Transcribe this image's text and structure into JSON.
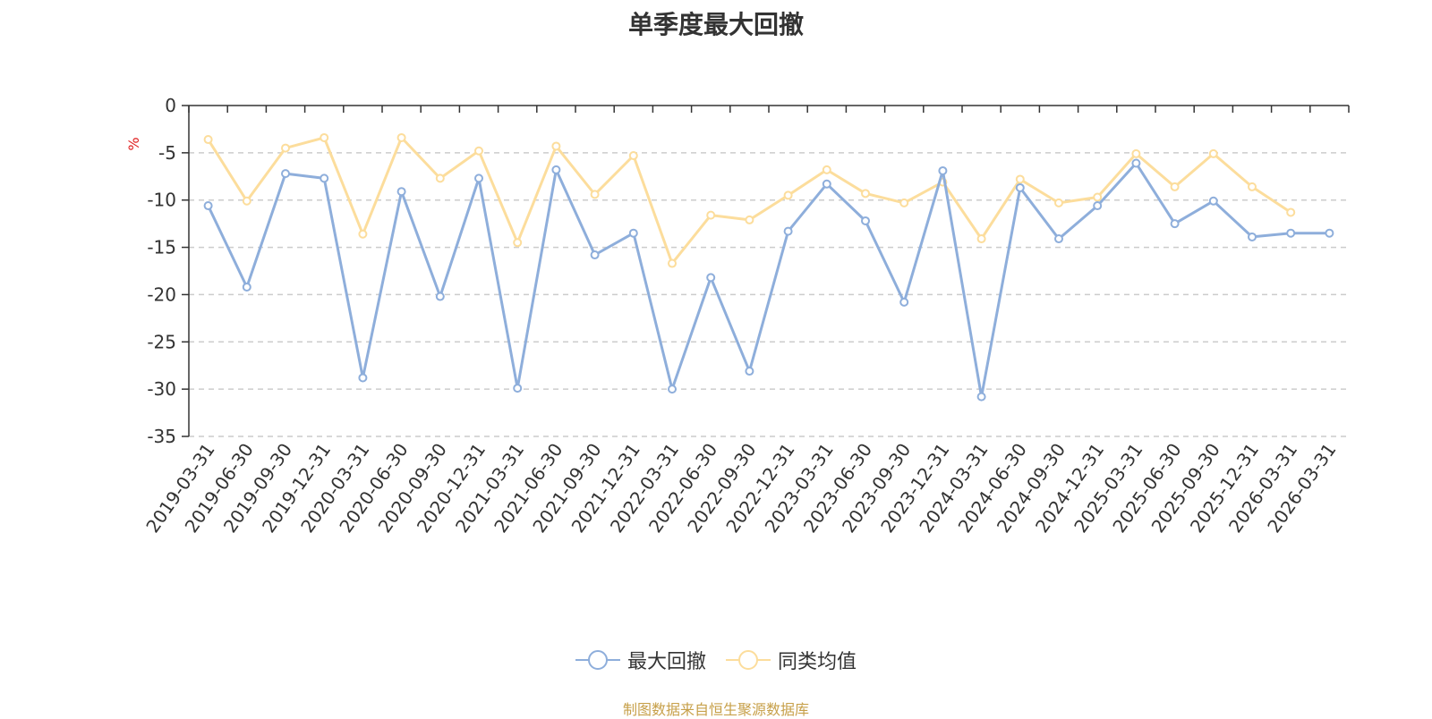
{
  "chart_data": {
    "type": "line",
    "title": "单季度最大回撤",
    "ylabel": "%",
    "xlabel": "",
    "ylim": [
      -35,
      0
    ],
    "yticks": [
      0,
      -5,
      -10,
      -15,
      -20,
      -25,
      -30,
      -35
    ],
    "grid": true,
    "legend_position": "bottom-center",
    "categories": [
      "2019-03-31",
      "2019-06-30",
      "2019-09-30",
      "2019-12-31",
      "2020-03-31",
      "2020-06-30",
      "2020-09-30",
      "2020-12-31",
      "2021-03-31",
      "2021-06-30",
      "2021-09-30",
      "2021-12-31",
      "2022-03-31",
      "2022-06-30",
      "2022-09-30",
      "2022-12-31",
      "2023-03-31",
      "2023-06-30",
      "2023-09-30",
      "2023-12-31",
      "2024-03-31",
      "2024-06-30",
      "2024-09-30",
      "2024-12-31",
      "2025-03-31",
      "2025-06-30",
      "2025-09-30",
      "2025-12-31",
      "2026-03-31",
      "2026-03-31"
    ],
    "series": [
      {
        "name": "最大回撤",
        "color": "#8eaedb",
        "values": [
          -10.6,
          -19.2,
          -7.2,
          -7.7,
          -28.8,
          -9.1,
          -20.2,
          -7.7,
          -29.9,
          -6.8,
          -15.8,
          -13.5,
          -30.0,
          -18.2,
          -28.1,
          -13.3,
          -8.3,
          -12.2,
          -20.8,
          -6.9,
          -30.8,
          -8.7,
          -14.1,
          -10.6,
          -6.1,
          -12.5,
          -10.1,
          -13.9,
          -13.5,
          -13.5
        ]
      },
      {
        "name": "同类均值",
        "color": "#fcdd9c",
        "values": [
          -3.6,
          -10.1,
          -4.5,
          -3.4,
          -13.6,
          -3.4,
          -7.7,
          -4.8,
          -14.5,
          -4.3,
          -9.4,
          -5.3,
          -16.7,
          -11.6,
          -12.1,
          -9.5,
          -6.8,
          -9.3,
          -10.3,
          -8.1,
          -14.1,
          -7.8,
          -10.3,
          -9.7,
          -5.1,
          -8.6,
          -5.1,
          -8.6,
          -11.3,
          null
        ]
      }
    ]
  },
  "footer": {
    "source": "制图数据来自恒生聚源数据库"
  }
}
